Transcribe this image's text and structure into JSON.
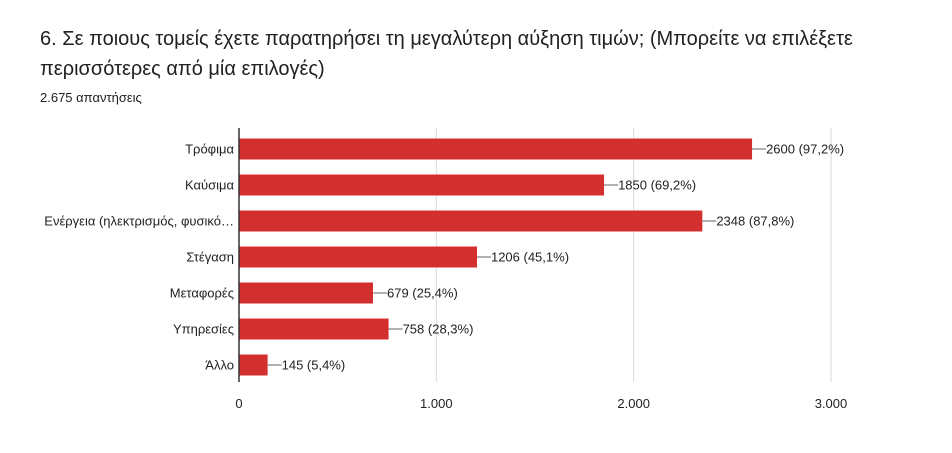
{
  "question": {
    "title": "6. Σε ποιους τομείς έχετε παρατηρήσει τη μεγαλύτερη αύξηση τιμών; (Μπορείτε να επιλέξετε περισσότερες από μία επιλογές)",
    "responses": "2.675 απαντήσεις"
  },
  "chart_data": {
    "type": "bar",
    "orientation": "horizontal",
    "categories": [
      "Τρόφιμα",
      "Καύσιμα",
      "Ενέργεια (ηλεκτρισμός, φυσικό…",
      "Στέγαση",
      "Μεταφορές",
      "Υπηρεσίες",
      "Άλλο"
    ],
    "values": [
      2600,
      1850,
      2348,
      1206,
      679,
      758,
      145
    ],
    "value_labels": [
      "2600 (97,2%)",
      "1850 (69,2%)",
      "2348 (87,8%)",
      "1206 (45,1%)",
      "679 (25,4%)",
      "758 (28,3%)",
      "145 (5,4%)"
    ],
    "xlim": [
      0,
      3000
    ],
    "xticks": [
      0,
      1000,
      2000,
      3000
    ],
    "xtick_labels": [
      "0",
      "1.000",
      "2.000",
      "3.000"
    ],
    "grid": true,
    "bar_color": "#d32f2f"
  }
}
